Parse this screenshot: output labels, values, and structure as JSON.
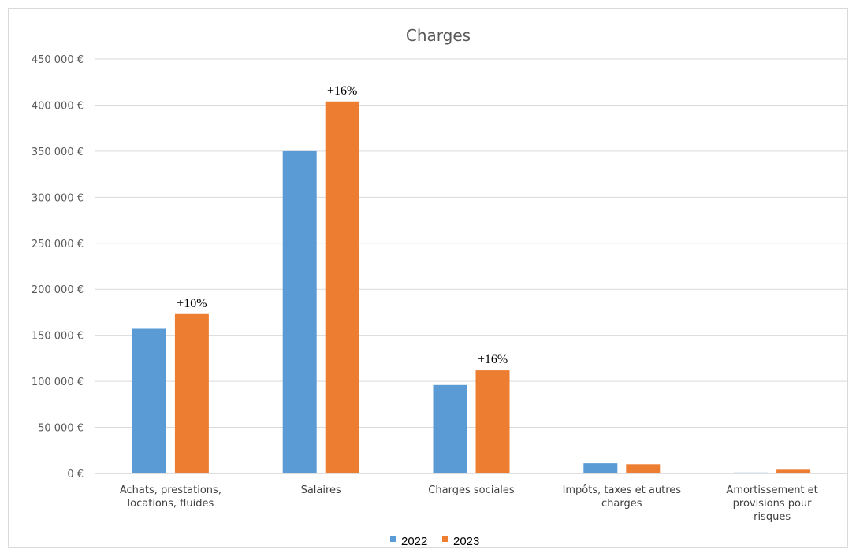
{
  "chart_data": {
    "type": "bar",
    "title": "Charges",
    "categories": [
      [
        "Achats, prestations,",
        "locations, fluides"
      ],
      [
        "Salaires"
      ],
      [
        "Charges sociales"
      ],
      [
        "Impôts, taxes et autres",
        "charges"
      ],
      [
        "Amortissement et",
        "provisions pour",
        "risques"
      ]
    ],
    "series": [
      {
        "name": "2022",
        "color": "#5b9bd5",
        "values": [
          157000,
          350000,
          96000,
          11000,
          1000
        ]
      },
      {
        "name": "2023",
        "color": "#ed7d31",
        "values": [
          173000,
          404000,
          112000,
          10000,
          4000
        ]
      }
    ],
    "data_labels": [
      "+10%",
      "+16%",
      "+16%",
      "",
      ""
    ],
    "ylim": [
      0,
      450000
    ],
    "yticks": [
      0,
      50000,
      100000,
      150000,
      200000,
      250000,
      300000,
      350000,
      400000,
      450000
    ],
    "ytick_labels": [
      "0 €",
      "50 000 €",
      "100 000 €",
      "150 000 €",
      "200 000 €",
      "250 000 €",
      "300 000 €",
      "350 000 €",
      "400 000 €",
      "450 000 €"
    ],
    "grid": true,
    "legend_position": "bottom"
  }
}
